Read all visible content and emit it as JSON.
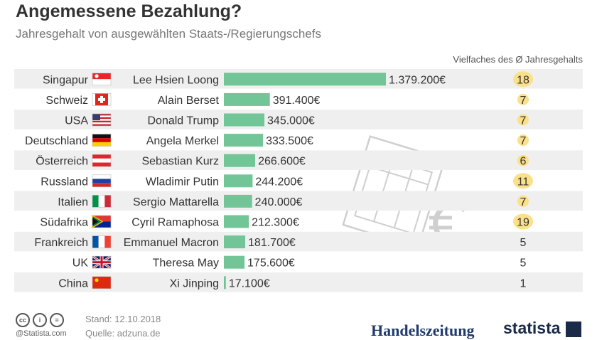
{
  "header": {
    "title": "Angemessene Bezahlung?",
    "subtitle": "Jahresgehalt von ausgewählten Staats-/Regierungschefs",
    "multiplier_label": "Vielfaches des Ø Jahresgehalts"
  },
  "footer": {
    "copyright": "@Statista.com",
    "stand": "Stand: 12.10.2018",
    "quelle": "Quelle: adzuna.de",
    "brand_handelszeitung": "Handelszeitung",
    "brand_statista": "statista"
  },
  "colors": {
    "bar": "#72c596",
    "row_stripe": "#efefef",
    "bubble": "#fbe08a",
    "decoration": "#cfcfcf"
  },
  "chart_data": {
    "type": "bar",
    "orientation": "horizontal",
    "title": "Angemessene Bezahlung?",
    "subtitle": "Jahresgehalt von ausgewählten Staats-/Regierungschefs",
    "unit": "€",
    "categories": [
      "Singapur",
      "Schweiz",
      "USA",
      "Deutschland",
      "Österreich",
      "Russland",
      "Italien",
      "Südafrika",
      "Frankreich",
      "UK",
      "China"
    ],
    "leaders": [
      "Lee Hsien Loong",
      "Alain Berset",
      "Donald Trump",
      "Angela Merkel",
      "Sebastian Kurz",
      "Wladimir Putin",
      "Sergio Mattarella",
      "Cyril Ramaphosa",
      "Emmanuel Macron",
      "Theresa May",
      "Xi Jinping"
    ],
    "values": [
      1379200,
      391400,
      345000,
      333500,
      266600,
      244200,
      240000,
      212300,
      181700,
      175600,
      17100
    ],
    "value_labels": [
      "1.379.200€",
      "391.400€",
      "345.000€",
      "333.500€",
      "266.600€",
      "244.200€",
      "240.000€",
      "212.300€",
      "181.700€",
      "175.600€",
      "17.100€"
    ],
    "multiplier_label": "Vielfaches des Ø Jahresgehalts",
    "multipliers": [
      18,
      7,
      7,
      7,
      6,
      11,
      7,
      19,
      5,
      5,
      1
    ],
    "flags": [
      "flag-singapore",
      "flag-switzerland",
      "flag-usa",
      "flag-germany",
      "flag-austria",
      "flag-russia",
      "flag-italy",
      "flag-south-africa",
      "flag-france",
      "flag-uk",
      "flag-china"
    ],
    "xlim": [
      0,
      1379200
    ],
    "grid": false,
    "legend": "none"
  }
}
